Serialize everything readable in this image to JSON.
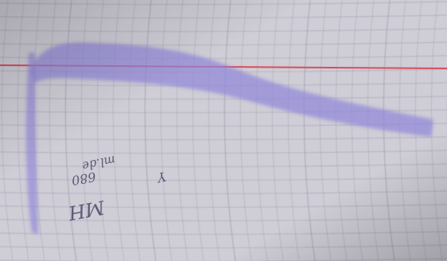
{
  "photo": {
    "paper_color": "#cfcdd6",
    "grid_color": "#8e8aa0",
    "trace_color": "#8f86d9",
    "red_line_color": "#d6505a",
    "handwriting_color": "#5d5a78"
  },
  "handwriting": {
    "line_1": "MH",
    "line_2": "680",
    "line_3": "ml.de",
    "mark": "Y"
  }
}
